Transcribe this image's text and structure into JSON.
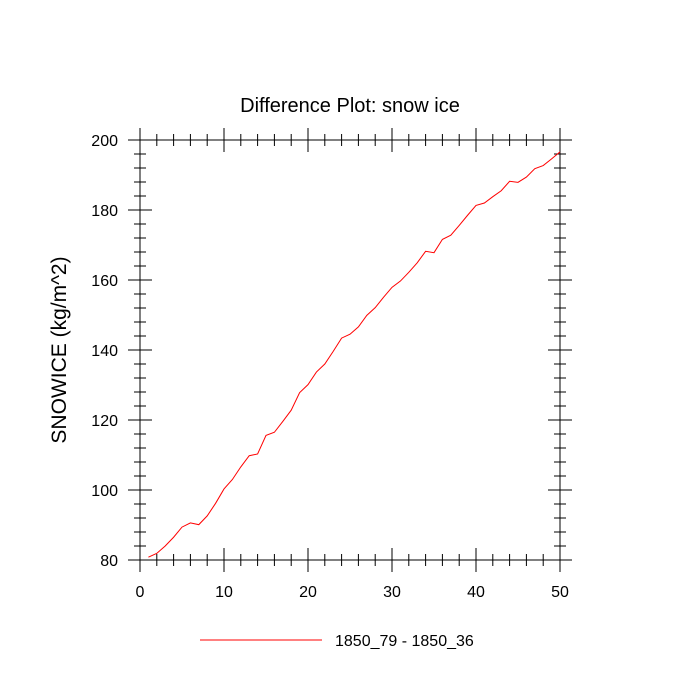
{
  "chart_data": {
    "type": "line",
    "title": "Difference Plot: snow ice",
    "xlabel": "",
    "ylabel": "SNOWICE  (kg/m^2)",
    "xlim": [
      0,
      50
    ],
    "ylim": [
      80,
      200
    ],
    "x_ticks": [
      0,
      10,
      20,
      30,
      40,
      50
    ],
    "y_ticks": [
      80,
      100,
      120,
      140,
      160,
      180,
      200
    ],
    "grid": false,
    "legend_position": "bottom-center",
    "series": [
      {
        "name": "1850_79 - 1850_36",
        "color": "#ff0000",
        "x": [
          1,
          2,
          3,
          4,
          5,
          6,
          7,
          8,
          9,
          10,
          11,
          12,
          13,
          14,
          15,
          16,
          17,
          18,
          19,
          20,
          21,
          22,
          23,
          24,
          25,
          26,
          27,
          28,
          29,
          30,
          31,
          32,
          33,
          34,
          35,
          36,
          37,
          38,
          39,
          40,
          41,
          42,
          43,
          44,
          45,
          46,
          47,
          48,
          49,
          50
        ],
        "y": [
          80.8,
          81.9,
          84.0,
          86.5,
          89.4,
          90.6,
          90.1,
          92.6,
          96.2,
          100.3,
          103.0,
          106.6,
          109.8,
          110.3,
          115.6,
          116.5,
          119.6,
          122.8,
          127.8,
          130.1,
          133.7,
          136.0,
          139.6,
          143.4,
          144.5,
          146.6,
          149.9,
          152.1,
          155.1,
          157.9,
          159.7,
          162.2,
          164.9,
          168.2,
          167.8,
          171.6,
          172.8,
          175.6,
          178.5,
          181.3,
          182.0,
          183.8,
          185.5,
          188.2,
          187.9,
          189.4,
          191.8,
          192.7,
          194.6,
          196.6
        ]
      }
    ]
  }
}
